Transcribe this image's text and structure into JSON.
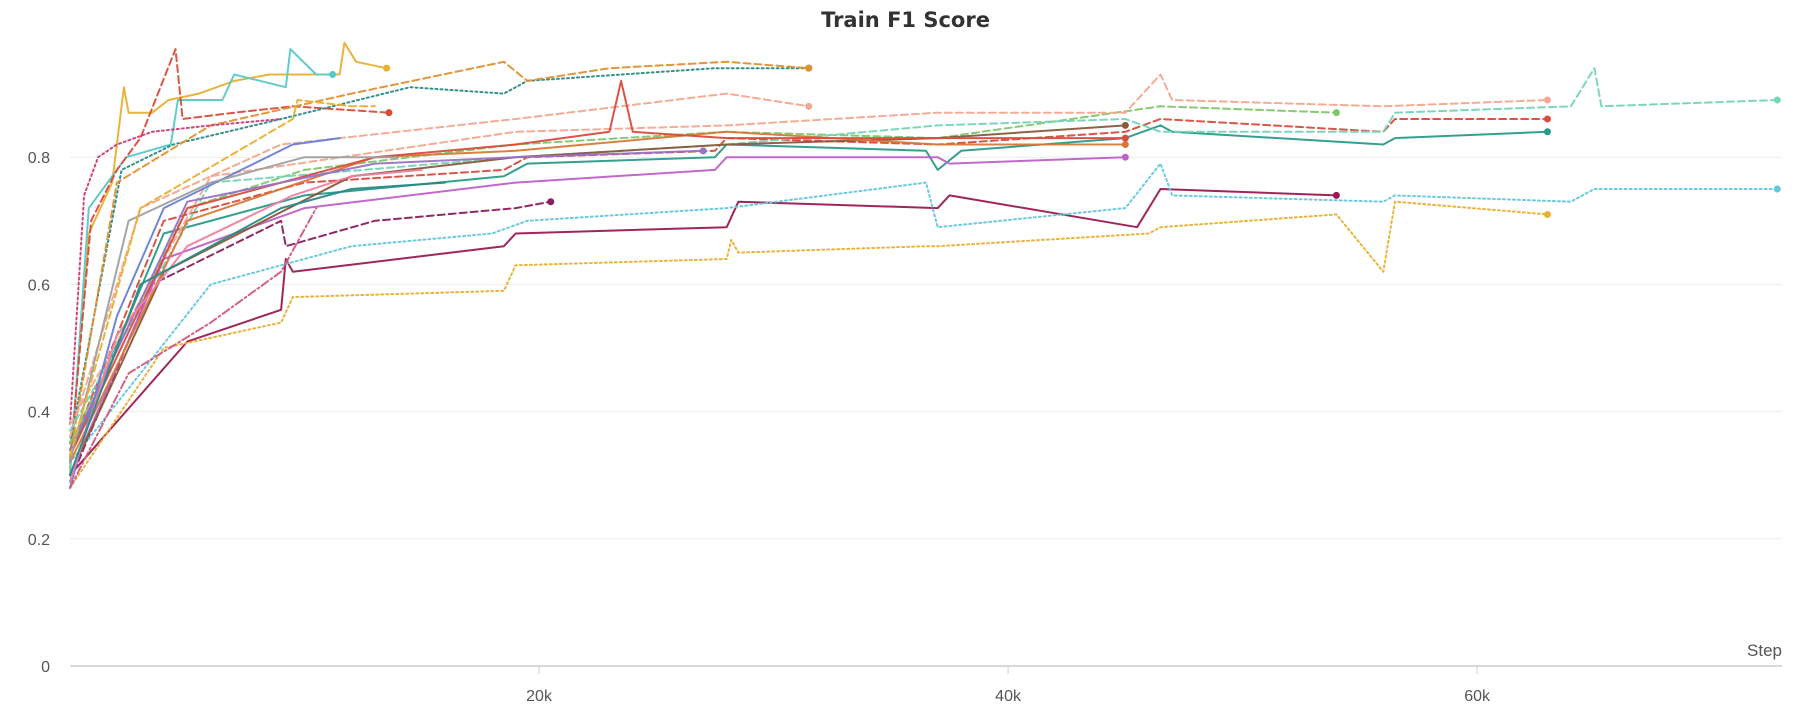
{
  "chart_data": {
    "type": "line",
    "title": "Train F1 Score",
    "xlabel": "Step",
    "ylabel": "",
    "xlim": [
      0,
      73000
    ],
    "ylim": [
      0,
      1.0
    ],
    "x_ticks": [
      20000,
      40000,
      60000
    ],
    "x_tick_labels": [
      "20k",
      "40k",
      "60k"
    ],
    "y_ticks": [
      0,
      0.2,
      0.4,
      0.6,
      0.8
    ],
    "y_tick_labels": [
      "0",
      "0.2",
      "0.4",
      "0.6",
      "0.8"
    ],
    "grid": true,
    "legend": "none",
    "series": [
      {
        "color": "#e8b030",
        "dash": "solid",
        "points": [
          [
            0,
            0.31
          ],
          [
            800,
            0.68
          ],
          [
            1800,
            0.76
          ],
          [
            2300,
            0.91
          ],
          [
            2500,
            0.87
          ],
          [
            3500,
            0.87
          ],
          [
            4200,
            0.89
          ],
          [
            5500,
            0.9
          ],
          [
            7000,
            0.92
          ],
          [
            8500,
            0.93
          ],
          [
            11500,
            0.93
          ],
          [
            11700,
            0.98
          ],
          [
            12200,
            0.95
          ],
          [
            13500,
            0.94
          ]
        ]
      },
      {
        "color": "#5bc8c8",
        "dash": "solid",
        "points": [
          [
            0,
            0.3
          ],
          [
            800,
            0.72
          ],
          [
            2000,
            0.78
          ],
          [
            2400,
            0.8
          ],
          [
            4300,
            0.82
          ],
          [
            4600,
            0.89
          ],
          [
            6500,
            0.89
          ],
          [
            7000,
            0.93
          ],
          [
            9200,
            0.91
          ],
          [
            9400,
            0.97
          ],
          [
            10500,
            0.93
          ],
          [
            11200,
            0.93
          ]
        ]
      },
      {
        "color": "#d94c3c",
        "dash": "dashed",
        "points": [
          [
            0,
            0.32
          ],
          [
            900,
            0.7
          ],
          [
            2000,
            0.78
          ],
          [
            3000,
            0.83
          ],
          [
            4500,
            0.97
          ],
          [
            4800,
            0.86
          ],
          [
            7000,
            0.87
          ],
          [
            9500,
            0.88
          ],
          [
            13600,
            0.87
          ]
        ]
      },
      {
        "color": "#2a8a86",
        "dash": "dotted",
        "points": [
          [
            0,
            0.35
          ],
          [
            2200,
            0.78
          ],
          [
            4400,
            0.82
          ],
          [
            9000,
            0.86
          ],
          [
            14500,
            0.91
          ],
          [
            18500,
            0.9
          ],
          [
            19500,
            0.92
          ],
          [
            27500,
            0.94
          ],
          [
            31500,
            0.94
          ]
        ]
      },
      {
        "color": "#e09030",
        "dash": "dashed",
        "points": [
          [
            0,
            0.33
          ],
          [
            2000,
            0.76
          ],
          [
            6000,
            0.85
          ],
          [
            12000,
            0.9
          ],
          [
            18500,
            0.95
          ],
          [
            19500,
            0.92
          ],
          [
            23000,
            0.94
          ],
          [
            28000,
            0.95
          ],
          [
            31500,
            0.94
          ]
        ]
      },
      {
        "color": "#f2a890",
        "dash": "dashed",
        "points": [
          [
            0,
            0.36
          ],
          [
            3000,
            0.72
          ],
          [
            9000,
            0.82
          ],
          [
            19000,
            0.86
          ],
          [
            28000,
            0.9
          ],
          [
            31500,
            0.88
          ]
        ]
      },
      {
        "color": "#cc3c78",
        "dash": "dotted",
        "points": [
          [
            0,
            0.38
          ],
          [
            600,
            0.74
          ],
          [
            1200,
            0.8
          ],
          [
            2000,
            0.82
          ],
          [
            3500,
            0.84
          ],
          [
            6000,
            0.85
          ],
          [
            9000,
            0.86
          ]
        ]
      },
      {
        "color": "#8a2060",
        "dash": "dashed",
        "points": [
          [
            0,
            0.29
          ],
          [
            3500,
            0.6
          ],
          [
            9000,
            0.7
          ],
          [
            9200,
            0.66
          ],
          [
            13000,
            0.7
          ],
          [
            19000,
            0.72
          ],
          [
            20500,
            0.73
          ]
        ]
      },
      {
        "color": "#9a1a50",
        "dash": "solid",
        "points": [
          [
            0,
            0.3
          ],
          [
            5000,
            0.51
          ],
          [
            9000,
            0.56
          ],
          [
            9200,
            0.64
          ],
          [
            9500,
            0.62
          ],
          [
            14000,
            0.64
          ],
          [
            18500,
            0.66
          ],
          [
            19000,
            0.68
          ],
          [
            28000,
            0.69
          ],
          [
            28500,
            0.73
          ],
          [
            37000,
            0.72
          ],
          [
            37500,
            0.74
          ],
          [
            45500,
            0.69
          ],
          [
            46500,
            0.75
          ],
          [
            54000,
            0.74
          ]
        ]
      },
      {
        "color": "#2a9a8a",
        "dash": "solid",
        "points": [
          [
            0,
            0.33
          ],
          [
            4000,
            0.68
          ],
          [
            10000,
            0.74
          ],
          [
            18500,
            0.77
          ],
          [
            19500,
            0.79
          ],
          [
            27500,
            0.8
          ],
          [
            28000,
            0.82
          ],
          [
            36500,
            0.81
          ],
          [
            37000,
            0.78
          ],
          [
            38000,
            0.81
          ],
          [
            45000,
            0.83
          ],
          [
            46500,
            0.85
          ],
          [
            47000,
            0.84
          ],
          [
            56000,
            0.82
          ],
          [
            56500,
            0.83
          ],
          [
            63000,
            0.84
          ]
        ]
      },
      {
        "color": "#d94c3c",
        "dash": "dashed",
        "points": [
          [
            0,
            0.34
          ],
          [
            4000,
            0.7
          ],
          [
            10000,
            0.76
          ],
          [
            18500,
            0.78
          ],
          [
            19500,
            0.8
          ],
          [
            27500,
            0.81
          ],
          [
            28000,
            0.83
          ],
          [
            37000,
            0.82
          ],
          [
            45000,
            0.84
          ],
          [
            46500,
            0.86
          ],
          [
            56000,
            0.84
          ],
          [
            56500,
            0.86
          ],
          [
            63000,
            0.86
          ]
        ]
      },
      {
        "color": "#7fc86a",
        "dash": "dashed",
        "points": [
          [
            0,
            0.35
          ],
          [
            5000,
            0.72
          ],
          [
            10000,
            0.78
          ],
          [
            19000,
            0.82
          ],
          [
            28000,
            0.84
          ],
          [
            37000,
            0.83
          ],
          [
            46500,
            0.88
          ],
          [
            54000,
            0.87
          ]
        ]
      },
      {
        "color": "#76d4b8",
        "dash": "dashed",
        "points": [
          [
            0,
            0.37
          ],
          [
            6000,
            0.76
          ],
          [
            19000,
            0.8
          ],
          [
            28000,
            0.82
          ],
          [
            37000,
            0.85
          ],
          [
            45000,
            0.86
          ],
          [
            46500,
            0.84
          ],
          [
            56000,
            0.84
          ],
          [
            56500,
            0.87
          ],
          [
            64000,
            0.88
          ],
          [
            65000,
            0.94
          ],
          [
            65300,
            0.88
          ],
          [
            72800,
            0.89
          ]
        ]
      },
      {
        "color": "#f2a890",
        "dash": "dashed",
        "points": [
          [
            0,
            0.38
          ],
          [
            6000,
            0.77
          ],
          [
            19000,
            0.84
          ],
          [
            28000,
            0.85
          ],
          [
            37000,
            0.87
          ],
          [
            45000,
            0.87
          ],
          [
            46500,
            0.93
          ],
          [
            47000,
            0.89
          ],
          [
            56000,
            0.88
          ],
          [
            63000,
            0.89
          ]
        ]
      },
      {
        "color": "#62c8dc",
        "dash": "dotted",
        "points": [
          [
            0,
            0.32
          ],
          [
            6000,
            0.6
          ],
          [
            12000,
            0.66
          ],
          [
            18000,
            0.68
          ],
          [
            19500,
            0.7
          ],
          [
            28000,
            0.72
          ],
          [
            36500,
            0.76
          ],
          [
            37000,
            0.69
          ],
          [
            45000,
            0.72
          ],
          [
            46500,
            0.79
          ],
          [
            47000,
            0.74
          ],
          [
            56000,
            0.73
          ],
          [
            56500,
            0.74
          ],
          [
            64000,
            0.73
          ],
          [
            65000,
            0.75
          ],
          [
            72800,
            0.75
          ]
        ]
      },
      {
        "color": "#e8b030",
        "dash": "dotted",
        "points": [
          [
            0,
            0.28
          ],
          [
            4000,
            0.5
          ],
          [
            9000,
            0.54
          ],
          [
            9500,
            0.58
          ],
          [
            18500,
            0.59
          ],
          [
            19000,
            0.63
          ],
          [
            28000,
            0.64
          ],
          [
            28200,
            0.67
          ],
          [
            28500,
            0.65
          ],
          [
            36500,
            0.66
          ],
          [
            37000,
            0.66
          ],
          [
            46000,
            0.68
          ],
          [
            46500,
            0.69
          ],
          [
            54000,
            0.71
          ],
          [
            56000,
            0.62
          ],
          [
            56500,
            0.73
          ],
          [
            63000,
            0.71
          ]
        ]
      },
      {
        "color": "#c060c8",
        "dash": "solid",
        "points": [
          [
            0,
            0.3
          ],
          [
            4000,
            0.64
          ],
          [
            10000,
            0.72
          ],
          [
            19000,
            0.76
          ],
          [
            27500,
            0.78
          ],
          [
            28000,
            0.8
          ],
          [
            37000,
            0.8
          ],
          [
            37500,
            0.79
          ],
          [
            45000,
            0.8
          ]
        ]
      },
      {
        "color": "#8a5a3a",
        "dash": "solid",
        "points": [
          [
            0,
            0.3
          ],
          [
            4000,
            0.62
          ],
          [
            12000,
            0.77
          ],
          [
            19000,
            0.8
          ],
          [
            28000,
            0.82
          ],
          [
            37000,
            0.83
          ],
          [
            45000,
            0.85
          ]
        ]
      },
      {
        "color": "#d87838",
        "dash": "solid",
        "points": [
          [
            0,
            0.32
          ],
          [
            5000,
            0.7
          ],
          [
            13000,
            0.8
          ],
          [
            19000,
            0.81
          ],
          [
            28000,
            0.84
          ],
          [
            37000,
            0.82
          ],
          [
            45000,
            0.82
          ]
        ]
      },
      {
        "color": "#d94c3c",
        "dash": "solid",
        "points": [
          [
            0,
            0.33
          ],
          [
            5000,
            0.72
          ],
          [
            13000,
            0.8
          ],
          [
            19000,
            0.82
          ],
          [
            23000,
            0.84
          ],
          [
            23500,
            0.92
          ],
          [
            24000,
            0.84
          ],
          [
            28000,
            0.83
          ],
          [
            37000,
            0.83
          ],
          [
            45000,
            0.83
          ]
        ]
      },
      {
        "color": "#9a70c8",
        "dash": "solid",
        "points": [
          [
            0,
            0.34
          ],
          [
            5000,
            0.73
          ],
          [
            13000,
            0.79
          ],
          [
            19000,
            0.8
          ],
          [
            27000,
            0.81
          ]
        ]
      },
      {
        "color": "#6a80d8",
        "dash": "solid",
        "points": [
          [
            0,
            0.28
          ],
          [
            2000,
            0.55
          ],
          [
            4000,
            0.72
          ],
          [
            9500,
            0.82
          ],
          [
            11500,
            0.83
          ]
        ]
      },
      {
        "color": "#f080a0",
        "dash": "solid",
        "points": [
          [
            0,
            0.29
          ],
          [
            2000,
            0.52
          ],
          [
            5000,
            0.66
          ],
          [
            9500,
            0.74
          ],
          [
            12000,
            0.77
          ],
          [
            15000,
            0.78
          ]
        ]
      },
      {
        "color": "#a0a0a0",
        "dash": "solid",
        "points": [
          [
            0,
            0.32
          ],
          [
            2500,
            0.7
          ],
          [
            6000,
            0.76
          ],
          [
            10000,
            0.8
          ],
          [
            14000,
            0.8
          ]
        ]
      },
      {
        "color": "#d05a80",
        "dash": "dashdot",
        "points": [
          [
            0,
            0.28
          ],
          [
            2500,
            0.46
          ],
          [
            6000,
            0.54
          ],
          [
            9000,
            0.62
          ],
          [
            10500,
            0.72
          ]
        ]
      },
      {
        "color": "#2a8a86",
        "dash": "solid",
        "points": [
          [
            0,
            0.3
          ],
          [
            3000,
            0.6
          ],
          [
            9000,
            0.72
          ],
          [
            12000,
            0.75
          ],
          [
            16000,
            0.76
          ]
        ]
      },
      {
        "color": "#e8b030",
        "dash": "dashed",
        "points": [
          [
            0,
            0.33
          ],
          [
            3000,
            0.72
          ],
          [
            9500,
            0.86
          ],
          [
            9700,
            0.89
          ],
          [
            12000,
            0.88
          ],
          [
            13000,
            0.88
          ]
        ]
      }
    ],
    "end_marker_series": [
      0,
      1,
      2,
      3,
      4,
      5,
      7,
      8,
      9,
      10,
      11,
      12,
      13,
      14,
      15,
      16,
      17,
      18,
      19,
      20
    ]
  }
}
